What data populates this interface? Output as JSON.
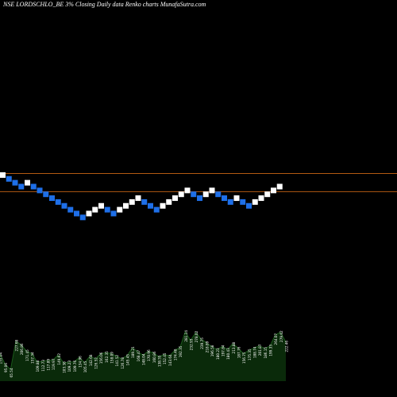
{
  "chart_data": {
    "type": "renko",
    "title": "NSE LORDSCHLO_BE 3% Closing Daily data Renko charts MunafaSutra.com",
    "interval": "daily",
    "box_size_percent": 3,
    "colors": {
      "background": "#000000",
      "up_brick": "#ffffff",
      "down_brick": "#1e6fe8",
      "reference_line": "#b35a12",
      "volume_fill": "#0a2a0a",
      "volume_line": "#1a5a1a",
      "label_text": "#ffffff"
    },
    "reference_lines": [
      {
        "label": "upper",
        "level": 13
      },
      {
        "label": "lower",
        "level": 9
      }
    ],
    "bricks": [
      {
        "dir": "up",
        "level": 13
      },
      {
        "dir": "down",
        "level": 12
      },
      {
        "dir": "down",
        "level": 11
      },
      {
        "dir": "down",
        "level": 10
      },
      {
        "dir": "up",
        "level": 11
      },
      {
        "dir": "down",
        "level": 10
      },
      {
        "dir": "down",
        "level": 9
      },
      {
        "dir": "down",
        "level": 8
      },
      {
        "dir": "down",
        "level": 7
      },
      {
        "dir": "down",
        "level": 6
      },
      {
        "dir": "down",
        "level": 5
      },
      {
        "dir": "down",
        "level": 4
      },
      {
        "dir": "down",
        "level": 3
      },
      {
        "dir": "down",
        "level": 2
      },
      {
        "dir": "up",
        "level": 3
      },
      {
        "dir": "up",
        "level": 4
      },
      {
        "dir": "up",
        "level": 5
      },
      {
        "dir": "down",
        "level": 4
      },
      {
        "dir": "down",
        "level": 3
      },
      {
        "dir": "up",
        "level": 4
      },
      {
        "dir": "up",
        "level": 5
      },
      {
        "dir": "up",
        "level": 6
      },
      {
        "dir": "up",
        "level": 7
      },
      {
        "dir": "down",
        "level": 6
      },
      {
        "dir": "down",
        "level": 5
      },
      {
        "dir": "down",
        "level": 4
      },
      {
        "dir": "up",
        "level": 5
      },
      {
        "dir": "up",
        "level": 6
      },
      {
        "dir": "up",
        "level": 7
      },
      {
        "dir": "up",
        "level": 8
      },
      {
        "dir": "up",
        "level": 9
      },
      {
        "dir": "down",
        "level": 8
      },
      {
        "dir": "down",
        "level": 7
      },
      {
        "dir": "up",
        "level": 8
      },
      {
        "dir": "up",
        "level": 9
      },
      {
        "dir": "down",
        "level": 8
      },
      {
        "dir": "down",
        "level": 7
      },
      {
        "dir": "down",
        "level": 6
      },
      {
        "dir": "up",
        "level": 7
      },
      {
        "dir": "down",
        "level": 6
      },
      {
        "dir": "down",
        "level": 5
      },
      {
        "dir": "up",
        "level": 6
      },
      {
        "dir": "up",
        "level": 7
      },
      {
        "dir": "up",
        "level": 8
      },
      {
        "dir": "up",
        "level": 9
      },
      {
        "dir": "up",
        "level": 10
      }
    ],
    "volume": {
      "labels": [
        "155.04",
        "95.06",
        "65.54",
        "227.68",
        "206.86",
        "171.45",
        "157.34",
        "109.88",
        "112.73",
        "117.89",
        "119.97",
        "149.62",
        "103.38",
        "109.23",
        "109.76",
        "134.96",
        "105.45",
        "142.68",
        "126.52",
        "156.06",
        "162.35",
        "158.09",
        "141.52",
        "126.78",
        "145.45",
        "189.21",
        "168.47",
        "148.04",
        "170.96",
        "160.86",
        "138.55",
        "152.45",
        "143.64",
        "174.48",
        "192.35",
        "281.14",
        "232.93",
        "278.02",
        "239.75",
        "218.89",
        "196.58",
        "180.23",
        "197.84",
        "180.43",
        "213.88",
        "187.76",
        "156.75",
        "175.35",
        "188.74",
        "201.87",
        "186.15",
        "199.33",
        "264.07",
        "279.62",
        "222.46"
      ],
      "values": [
        155.04,
        95.06,
        65.54,
        227.68,
        206.86,
        171.45,
        157.34,
        109.88,
        112.73,
        117.89,
        119.97,
        149.62,
        103.38,
        109.23,
        109.76,
        134.96,
        105.45,
        142.68,
        126.52,
        156.06,
        162.35,
        158.09,
        141.52,
        126.78,
        145.45,
        189.21,
        168.47,
        148.04,
        170.96,
        160.86,
        138.55,
        152.45,
        143.64,
        174.48,
        192.35,
        281.14,
        232.93,
        278.02,
        239.75,
        218.89,
        196.58,
        180.23,
        197.84,
        180.43,
        213.88,
        187.76,
        156.75,
        175.35,
        188.74,
        201.87,
        186.15,
        199.33,
        264.07,
        279.62,
        222.46
      ]
    },
    "grid": false,
    "legend": "none"
  }
}
